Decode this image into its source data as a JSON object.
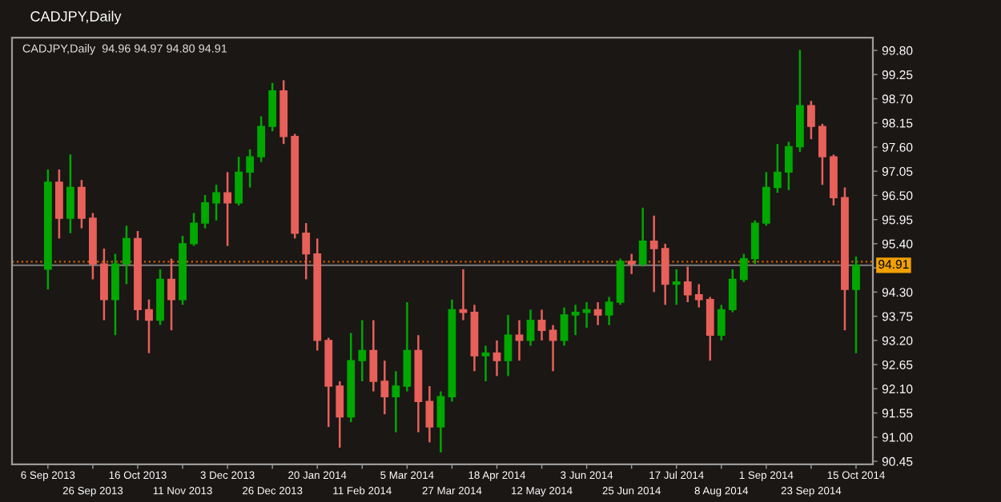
{
  "chart_data": {
    "type": "candlestick",
    "title": "CADJPY,Daily",
    "subtitle": "CADJPY,Daily  94.96 94.97 94.80 94.91",
    "categories": [
      "6 Sep 2013",
      null,
      null,
      null,
      "26 Sep 2013",
      null,
      null,
      null,
      "16 Oct 2013",
      null,
      null,
      null,
      "11 Nov 2013",
      null,
      null,
      null,
      "3 Dec 2013",
      null,
      null,
      null,
      "26 Dec 2013",
      null,
      null,
      null,
      "20 Jan 2014",
      null,
      null,
      null,
      "11 Feb 2014",
      null,
      null,
      null,
      "5 Mar 2014",
      null,
      null,
      null,
      "27 Mar 2014",
      null,
      null,
      null,
      "18 Apr 2014",
      null,
      null,
      null,
      "12 May 2014",
      null,
      null,
      null,
      "3 Jun 2014",
      null,
      null,
      null,
      "25 Jun 2014",
      null,
      null,
      null,
      "17 Jul 2014",
      null,
      null,
      null,
      "8 Aug 2014",
      null,
      null,
      null,
      "1 Sep 2014",
      null,
      null,
      null,
      "23 Sep 2014",
      null,
      null,
      null,
      "15 Oct 2014"
    ],
    "ohlc": [
      [
        94.82,
        97.09,
        94.36,
        96.8
      ],
      [
        96.8,
        97.09,
        95.52,
        95.98
      ],
      [
        95.98,
        97.43,
        95.64,
        96.68
      ],
      [
        96.68,
        96.85,
        95.75,
        95.98
      ],
      [
        95.98,
        96.1,
        94.59,
        94.94
      ],
      [
        94.94,
        95.29,
        93.66,
        94.13
      ],
      [
        94.13,
        95.17,
        93.32,
        94.94
      ],
      [
        94.94,
        95.81,
        94.48,
        95.52
      ],
      [
        95.52,
        95.69,
        93.66,
        93.9
      ],
      [
        93.9,
        94.13,
        92.91,
        93.66
      ],
      [
        93.66,
        94.82,
        93.55,
        94.59
      ],
      [
        94.59,
        95.06,
        93.43,
        94.13
      ],
      [
        94.13,
        95.58,
        94.01,
        95.4
      ],
      [
        95.4,
        96.1,
        95.35,
        95.87
      ],
      [
        95.87,
        96.51,
        95.75,
        96.33
      ],
      [
        96.33,
        96.74,
        95.93,
        96.56
      ],
      [
        96.56,
        97.03,
        95.35,
        96.33
      ],
      [
        96.33,
        97.38,
        96.27,
        97.03
      ],
      [
        97.03,
        97.55,
        96.68,
        97.38
      ],
      [
        97.38,
        98.3,
        97.26,
        98.07
      ],
      [
        98.07,
        99.06,
        97.96,
        98.88
      ],
      [
        98.88,
        99.12,
        97.67,
        97.84
      ],
      [
        97.84,
        97.9,
        95.52,
        95.64
      ],
      [
        95.64,
        95.87,
        94.59,
        95.17
      ],
      [
        95.17,
        95.52,
        92.97,
        93.2
      ],
      [
        93.2,
        93.26,
        91.23,
        92.16
      ],
      [
        92.16,
        92.27,
        90.76,
        91.46
      ],
      [
        91.46,
        93.37,
        91.34,
        92.74
      ],
      [
        92.74,
        93.66,
        92.27,
        92.97
      ],
      [
        92.97,
        93.66,
        92.04,
        92.27
      ],
      [
        92.27,
        92.74,
        91.52,
        91.92
      ],
      [
        91.92,
        92.5,
        91.11,
        92.16
      ],
      [
        92.16,
        94.07,
        92.04,
        92.97
      ],
      [
        92.97,
        93.32,
        91.11,
        91.81
      ],
      [
        91.81,
        92.16,
        90.88,
        91.23
      ],
      [
        91.23,
        92.04,
        90.65,
        91.92
      ],
      [
        91.92,
        94.13,
        91.81,
        93.9
      ],
      [
        93.9,
        94.82,
        93.66,
        93.84
      ],
      [
        93.84,
        94.01,
        92.5,
        92.85
      ],
      [
        92.85,
        93.08,
        92.27,
        92.91
      ],
      [
        92.91,
        93.2,
        92.39,
        92.74
      ],
      [
        92.74,
        93.78,
        92.39,
        93.32
      ],
      [
        93.32,
        93.66,
        92.74,
        93.2
      ],
      [
        93.2,
        93.9,
        93.08,
        93.66
      ],
      [
        93.66,
        93.9,
        93.2,
        93.43
      ],
      [
        93.43,
        93.55,
        92.5,
        93.2
      ],
      [
        93.2,
        93.95,
        93.08,
        93.78
      ],
      [
        93.78,
        94.01,
        93.32,
        93.84
      ],
      [
        93.84,
        94.07,
        93.49,
        93.9
      ],
      [
        93.9,
        94.07,
        93.55,
        93.78
      ],
      [
        93.78,
        94.19,
        93.55,
        94.07
      ],
      [
        94.07,
        95.06,
        94.01,
        95.0
      ],
      [
        95.0,
        95.17,
        94.71,
        94.94
      ],
      [
        94.94,
        96.22,
        94.88,
        95.46
      ],
      [
        95.46,
        96.04,
        94.3,
        95.29
      ],
      [
        95.29,
        95.4,
        94.01,
        94.48
      ],
      [
        94.48,
        94.82,
        94.01,
        94.53
      ],
      [
        94.53,
        94.88,
        94.07,
        94.24
      ],
      [
        94.24,
        94.48,
        93.95,
        94.13
      ],
      [
        94.13,
        94.19,
        92.74,
        93.32
      ],
      [
        93.32,
        94.01,
        93.2,
        93.9
      ],
      [
        93.9,
        94.82,
        93.84,
        94.59
      ],
      [
        94.59,
        95.17,
        94.53,
        95.06
      ],
      [
        95.06,
        95.93,
        94.94,
        95.87
      ],
      [
        95.87,
        97.03,
        95.81,
        96.68
      ],
      [
        96.68,
        97.67,
        96.56,
        97.03
      ],
      [
        97.03,
        97.72,
        96.62,
        97.61
      ],
      [
        97.61,
        99.81,
        97.49,
        98.54
      ],
      [
        98.54,
        98.65,
        97.78,
        98.07
      ],
      [
        98.07,
        98.13,
        96.74,
        97.38
      ],
      [
        97.38,
        97.43,
        96.27,
        96.45
      ],
      [
        96.45,
        96.68,
        93.43,
        94.36
      ],
      [
        94.36,
        95.11,
        92.91,
        94.91
      ]
    ],
    "colors": [
      "#00a800",
      "#e8605a",
      "#00a800",
      "#e8605a",
      "#e8605a",
      "#e8605a",
      "#00a800",
      "#00a800",
      "#e8605a",
      "#e8605a",
      "#00a800",
      "#e8605a",
      "#00a800",
      "#00a800",
      "#00a800",
      "#00a800",
      "#e8605a",
      "#00a800",
      "#00a800",
      "#00a800",
      "#00a800",
      "#e8605a",
      "#e8605a",
      "#e8605a",
      "#e8605a",
      "#e8605a",
      "#e8605a",
      "#00a800",
      "#00a800",
      "#e8605a",
      "#e8605a",
      "#00a800",
      "#00a800",
      "#e8605a",
      "#e8605a",
      "#00a800",
      "#00a800",
      "#e8605a",
      "#e8605a",
      "#00a800",
      "#e8605a",
      "#00a800",
      "#e8605a",
      "#00a800",
      "#e8605a",
      "#e8605a",
      "#00a800",
      "#00a800",
      "#00a800",
      "#e8605a",
      "#00a800",
      "#00a800",
      "#e8605a",
      "#00a800",
      "#e8605a",
      "#e8605a",
      "#00a800",
      "#e8605a",
      "#e8605a",
      "#e8605a",
      "#00a800",
      "#00a800",
      "#00a800",
      "#00a800",
      "#00a800",
      "#00a800",
      "#00a800",
      "#00a800",
      "#e8605a",
      "#e8605a",
      "#e8605a",
      "#e8605a",
      "#00a800"
    ],
    "ylim": [
      90.38,
      100.09
    ],
    "yticks": [
      90.45,
      {
        "value": 91.0,
        "label": "91.00"
      },
      91.55,
      {
        "value": 92.1,
        "label": "92.10"
      },
      92.65,
      {
        "value": 93.2,
        "label": "93.20"
      },
      93.75,
      {
        "value": 94.3,
        "label": "94.30"
      },
      {
        "value": 94.85,
        "label": null
      },
      {
        "value": 95.4,
        "label": "95.40"
      },
      95.95,
      {
        "value": 96.5,
        "label": "96.50"
      },
      97.05,
      {
        "value": 97.6,
        "label": "97.60"
      },
      98.15,
      {
        "value": 98.7,
        "label": "98.70"
      },
      99.25,
      {
        "value": 99.8,
        "label": "99.80"
      }
    ],
    "ref_lines": [
      {
        "axis": "y",
        "value": 94.99,
        "color": "#d06000",
        "line_style": "dotted"
      },
      {
        "axis": "y",
        "value": 94.91,
        "label": "94.91",
        "color": "#707070",
        "line_style": "solid"
      }
    ],
    "grid": false,
    "legend": false
  }
}
